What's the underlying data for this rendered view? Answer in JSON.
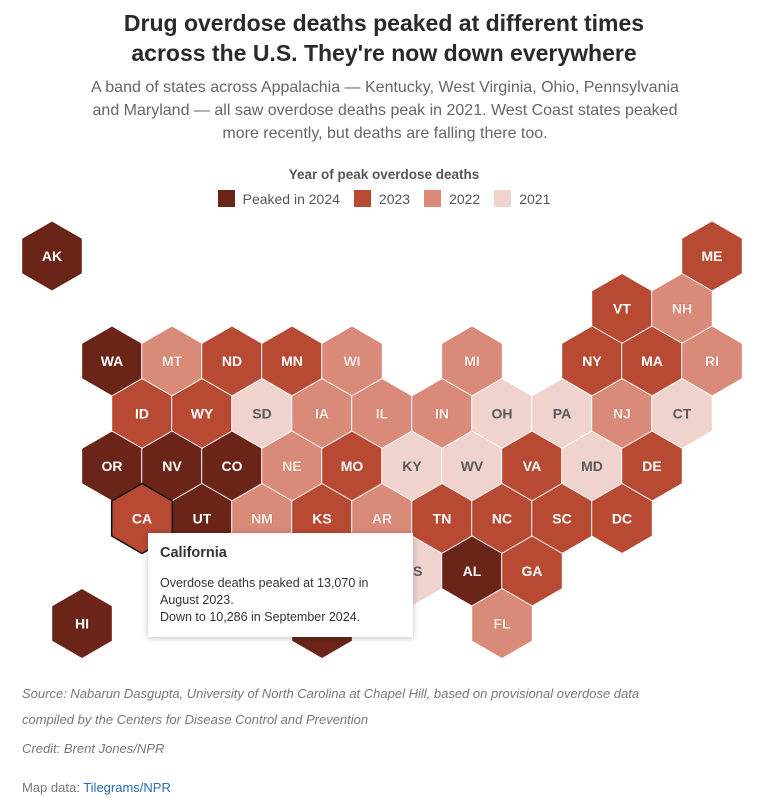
{
  "header": {
    "title_line1": "Drug overdose deaths peaked at different times",
    "title_line2": "across the U.S. They're now down everywhere",
    "subtitle": "A band of states across Appalachia — Kentucky, West Virginia, Ohio, Pennsylvania and Maryland — all saw overdose deaths peak in 2021. West Coast states peaked more recently, but deaths are falling there too."
  },
  "legend": {
    "title": "Year of peak overdose deaths",
    "items": [
      {
        "label": "Peaked in 2024",
        "year": 2024,
        "color": "#6b2418"
      },
      {
        "label": "2023",
        "year": 2023,
        "color": "#b84a33"
      },
      {
        "label": "2022",
        "year": 2022,
        "color": "#d98a78"
      },
      {
        "label": "2021",
        "year": 2021,
        "color": "#efd3cc"
      }
    ]
  },
  "states": [
    {
      "abbr": "AK",
      "year": 2024
    },
    {
      "abbr": "ME",
      "year": 2023
    },
    {
      "abbr": "VT",
      "year": 2023
    },
    {
      "abbr": "NH",
      "year": 2022
    },
    {
      "abbr": "WA",
      "year": 2024
    },
    {
      "abbr": "MT",
      "year": 2022
    },
    {
      "abbr": "ND",
      "year": 2023
    },
    {
      "abbr": "MN",
      "year": 2023
    },
    {
      "abbr": "WI",
      "year": 2022
    },
    {
      "abbr": "MI",
      "year": 2022
    },
    {
      "abbr": "NY",
      "year": 2023
    },
    {
      "abbr": "MA",
      "year": 2023
    },
    {
      "abbr": "RI",
      "year": 2022
    },
    {
      "abbr": "ID",
      "year": 2023
    },
    {
      "abbr": "WY",
      "year": 2023
    },
    {
      "abbr": "SD",
      "year": 2021
    },
    {
      "abbr": "IA",
      "year": 2022
    },
    {
      "abbr": "IL",
      "year": 2022
    },
    {
      "abbr": "IN",
      "year": 2022
    },
    {
      "abbr": "OH",
      "year": 2021
    },
    {
      "abbr": "PA",
      "year": 2021
    },
    {
      "abbr": "NJ",
      "year": 2022
    },
    {
      "abbr": "CT",
      "year": 2021
    },
    {
      "abbr": "OR",
      "year": 2024
    },
    {
      "abbr": "NV",
      "year": 2024
    },
    {
      "abbr": "CO",
      "year": 2024
    },
    {
      "abbr": "NE",
      "year": 2022
    },
    {
      "abbr": "MO",
      "year": 2023
    },
    {
      "abbr": "KY",
      "year": 2021
    },
    {
      "abbr": "WV",
      "year": 2021
    },
    {
      "abbr": "VA",
      "year": 2023
    },
    {
      "abbr": "MD",
      "year": 2021
    },
    {
      "abbr": "DE",
      "year": 2023
    },
    {
      "abbr": "CA",
      "year": 2023,
      "selected": true
    },
    {
      "abbr": "UT",
      "year": 2024
    },
    {
      "abbr": "NM",
      "year": 2022
    },
    {
      "abbr": "KS",
      "year": 2023
    },
    {
      "abbr": "AR",
      "year": 2022
    },
    {
      "abbr": "TN",
      "year": 2023
    },
    {
      "abbr": "NC",
      "year": 2023
    },
    {
      "abbr": "SC",
      "year": 2023
    },
    {
      "abbr": "DC",
      "year": 2023
    },
    {
      "abbr": "MS",
      "year": 2021
    },
    {
      "abbr": "AL",
      "year": 2024
    },
    {
      "abbr": "GA",
      "year": 2023
    },
    {
      "abbr": "HI",
      "year": 2024
    },
    {
      "abbr": "",
      "year": 2024
    },
    {
      "abbr": "FL",
      "year": 2022
    }
  ],
  "tooltip": {
    "title": "California",
    "line1": "Overdose deaths peaked at 13,070 in",
    "line2": "August 2023.",
    "line3": "Down to 10,286 in September 2024."
  },
  "footer": {
    "source_line1": "Source: Nabarun Dasgupta, University of North Carolina at Chapel Hill, based on provisional overdose data",
    "source_line2": "compiled by the Centers for Disease Control and Prevention",
    "credit": "Credit: Brent Jones/NPR",
    "map_data_label": "Map data: ",
    "map_data_link": "Tilegrams/NPR"
  }
}
